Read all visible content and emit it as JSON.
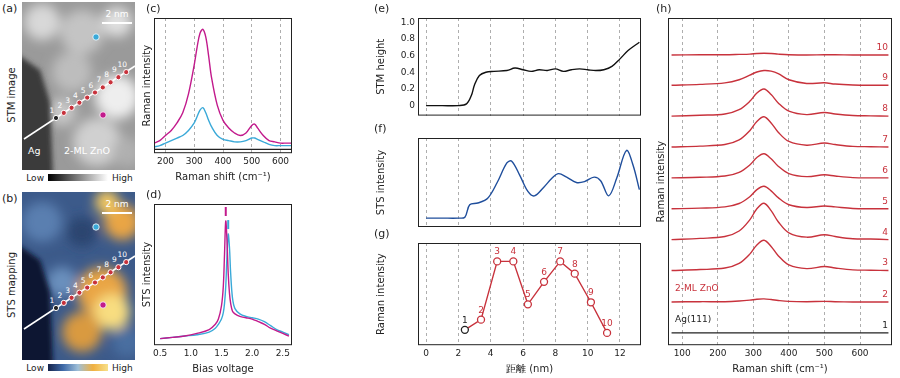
{
  "panels": [
    {
      "label": "(a)",
      "title": "STM image",
      "scale_bar": "2 nm",
      "region_labels": [
        "Ag",
        "2-ML ZnO"
      ],
      "point_labels": [
        "1",
        "2",
        "3",
        "4",
        "5",
        "6",
        "7",
        "8",
        "9",
        "10"
      ],
      "colorbar": [
        "Low",
        "High"
      ]
    },
    {
      "label": "(b)",
      "title": "STS mapping",
      "scale_bar": "2 nm",
      "point_labels": [
        "1",
        "2",
        "3",
        "4",
        "5",
        "6",
        "7",
        "8",
        "9",
        "10"
      ],
      "colorbar": [
        "Low",
        "High"
      ]
    }
  ],
  "chart_data": [
    {
      "type": "line",
      "title": "(c)",
      "x_label": "Raman shift (cm⁻¹)",
      "y_label": "Raman intensity",
      "xlim": [
        160,
        640
      ],
      "xticks": [
        200,
        300,
        400,
        500,
        600
      ],
      "ylim": [
        -0.02,
        1.05
      ],
      "tick_labels": "x",
      "grid": true,
      "x": [
        160,
        180,
        200,
        220,
        240,
        260,
        280,
        300,
        310,
        320,
        330,
        340,
        350,
        360,
        380,
        400,
        420,
        440,
        460,
        480,
        500,
        510,
        520,
        540,
        560,
        580,
        600,
        620,
        640
      ],
      "series": [
        {
          "color": "#c21a8c",
          "values": [
            0.06,
            0.08,
            0.12,
            0.16,
            0.22,
            0.3,
            0.45,
            0.68,
            0.82,
            0.93,
            0.96,
            0.9,
            0.75,
            0.58,
            0.36,
            0.24,
            0.18,
            0.14,
            0.12,
            0.14,
            0.2,
            0.21,
            0.18,
            0.12,
            0.08,
            0.07,
            0.06,
            0.06,
            0.06
          ]
        },
        {
          "color": "#3aa9d8",
          "values": [
            0.03,
            0.04,
            0.06,
            0.08,
            0.1,
            0.12,
            0.16,
            0.22,
            0.27,
            0.32,
            0.34,
            0.3,
            0.24,
            0.19,
            0.12,
            0.09,
            0.08,
            0.07,
            0.07,
            0.08,
            0.1,
            0.1,
            0.09,
            0.07,
            0.05,
            0.04,
            0.04,
            0.04,
            0.04
          ]
        },
        {
          "color": "#222222",
          "values": [
            0.01,
            0.01,
            0.01,
            0.01,
            0.01,
            0.01,
            0.01,
            0.01,
            0.01,
            0.01,
            0.01,
            0.01,
            0.01,
            0.01,
            0.01,
            0.01,
            0.01,
            0.01,
            0.01,
            0.01,
            0.01,
            0.01,
            0.01,
            0.01,
            0.01,
            0.01,
            0.01,
            0.01,
            0.01
          ]
        }
      ]
    },
    {
      "type": "line",
      "title": "(d)",
      "x_label": "Bias voltage",
      "y_label": "STS intensity",
      "xlim": [
        0.4,
        2.65
      ],
      "xticks": [
        0.5,
        {
          "value": 1,
          "label": "1.0"
        },
        1.5,
        {
          "value": 2,
          "label": "2.0"
        },
        2.5
      ],
      "ylim": [
        0,
        1.08
      ],
      "tick_labels": "x",
      "grid": false,
      "x": [
        0.5,
        0.7,
        0.9,
        1.1,
        1.3,
        1.4,
        1.45,
        1.5,
        1.53,
        1.55,
        1.57,
        1.59,
        1.61,
        1.63,
        1.65,
        1.68,
        1.72,
        1.8,
        1.9,
        2.0,
        2.1,
        2.2,
        2.3,
        2.4,
        2.5,
        2.6
      ],
      "series": [
        {
          "color": "#c21a8c",
          "peak": 1.57,
          "values": [
            0.05,
            0.06,
            0.07,
            0.09,
            0.12,
            0.16,
            0.2,
            0.3,
            0.45,
            0.7,
            0.95,
            0.8,
            0.55,
            0.4,
            0.32,
            0.26,
            0.24,
            0.22,
            0.21,
            0.2,
            0.18,
            0.16,
            0.13,
            0.11,
            0.09,
            0.07
          ]
        },
        {
          "color": "#3aa9d8",
          "peak": 1.61,
          "values": [
            0.05,
            0.06,
            0.07,
            0.08,
            0.1,
            0.13,
            0.16,
            0.2,
            0.25,
            0.32,
            0.45,
            0.68,
            0.85,
            0.75,
            0.55,
            0.36,
            0.28,
            0.24,
            0.22,
            0.21,
            0.2,
            0.18,
            0.15,
            0.12,
            0.1,
            0.08
          ]
        }
      ]
    },
    {
      "type": "line",
      "title": "(e)",
      "y_label": "STM height",
      "xlim": [
        -0.5,
        13.3
      ],
      "xticks": [
        0,
        2,
        4,
        6,
        8,
        10,
        12
      ],
      "ylim": [
        -0.12,
        1.05
      ],
      "yticks": [
        0,
        0.2,
        0.4,
        0.6,
        0.8,
        {
          "value": 1,
          "label": "1.0"
        }
      ],
      "tick_labels": "y",
      "grid": true,
      "x": [
        0,
        1,
        2,
        2.5,
        2.8,
        3.0,
        3.3,
        3.7,
        4.2,
        5,
        5.5,
        6,
        6.5,
        7,
        7.5,
        8,
        8.5,
        9,
        9.5,
        10,
        10.5,
        11,
        11.5,
        12,
        12.5,
        13.2
      ],
      "series": [
        {
          "color": "#111111",
          "values": [
            0,
            0,
            0,
            0.02,
            0.12,
            0.25,
            0.36,
            0.4,
            0.41,
            0.42,
            0.45,
            0.43,
            0.41,
            0.43,
            0.42,
            0.44,
            0.41,
            0.43,
            0.44,
            0.43,
            0.42,
            0.43,
            0.47,
            0.56,
            0.66,
            0.76
          ]
        }
      ]
    },
    {
      "type": "line",
      "title": "(f)",
      "y_label": "STS intensity",
      "xlim": [
        -0.5,
        13.3
      ],
      "xticks": [
        0,
        2,
        4,
        6,
        8,
        10,
        12
      ],
      "ylim": [
        0,
        1
      ],
      "tick_labels": false,
      "grid": true,
      "x": [
        0,
        1,
        2,
        2.4,
        2.7,
        3.2,
        3.8,
        4.4,
        5.0,
        5.3,
        5.8,
        6.3,
        6.7,
        7.3,
        7.8,
        8.2,
        8.7,
        9.3,
        9.8,
        10.4,
        10.8,
        11.3,
        11.8,
        12.4,
        12.8,
        13.2
      ],
      "series": [
        {
          "color": "#1f4e9c",
          "values": [
            0.1,
            0.1,
            0.1,
            0.11,
            0.25,
            0.27,
            0.32,
            0.5,
            0.72,
            0.74,
            0.58,
            0.4,
            0.35,
            0.45,
            0.55,
            0.6,
            0.56,
            0.5,
            0.51,
            0.56,
            0.52,
            0.35,
            0.55,
            0.86,
            0.7,
            0.42
          ]
        }
      ]
    },
    {
      "type": "line",
      "title": "(g)",
      "x_label": "距離 (nm)",
      "y_label": "Raman intensity",
      "xlim": [
        -0.5,
        13.3
      ],
      "xticks": [
        0,
        2,
        4,
        6,
        8,
        10,
        12
      ],
      "ylim": [
        0,
        1
      ],
      "tick_labels": "x",
      "grid": true,
      "x": [
        2.4,
        3.4,
        4.4,
        5.4,
        6.3,
        7.3,
        8.3,
        9.2,
        10.2,
        11.2
      ],
      "series": [
        {
          "color": "#c8323c",
          "marker": "open_circle",
          "colors": [
            "#222222",
            "#c8323c",
            "#c8323c",
            "#c8323c",
            "#c8323c",
            "#c8323c",
            "#c8323c",
            "#c8323c",
            "#c8323c",
            "#c8323c"
          ],
          "point_labels": [
            "1",
            "2",
            "3",
            "4",
            "5",
            "6",
            "7",
            "8",
            "9",
            "10"
          ],
          "values": [
            0.15,
            0.25,
            0.82,
            0.82,
            0.4,
            0.62,
            0.82,
            0.7,
            0.42,
            0.12
          ]
        }
      ]
    },
    {
      "type": "line",
      "title": "(h)",
      "x_label": "Raman shift (cm⁻¹)",
      "y_label": "Raman intensity",
      "xlim": [
        60,
        690
      ],
      "xticks": [
        100,
        200,
        300,
        400,
        500,
        600
      ],
      "ylim": [
        -0.4,
        10.2
      ],
      "tick_labels": "x",
      "grid": true,
      "x": [
        70,
        150,
        220,
        260,
        290,
        310,
        330,
        350,
        370,
        400,
        450,
        500,
        530,
        580,
        630,
        680
      ],
      "annotations": [
        {
          "text": "2-ML ZnO",
          "x": 80,
          "y": 1.35,
          "color": "#c8323c"
        },
        {
          "text": "Ag(111)",
          "x": 80,
          "y": 0.35,
          "color": "#222222"
        }
      ],
      "series": [
        {
          "name": "1",
          "color": "#222222",
          "values": [
            0,
            0,
            0,
            0,
            0,
            0,
            0,
            0,
            0,
            0,
            0,
            0,
            0,
            0,
            0,
            0
          ]
        },
        {
          "name": "2",
          "color": "#c8323c",
          "values": [
            1.0,
            1.01,
            1.01,
            1.03,
            1.06,
            1.09,
            1.1,
            1.08,
            1.05,
            1.02,
            1.01,
            1.02,
            1.01,
            1.0,
            1.0,
            1.0
          ]
        },
        {
          "name": "3",
          "color": "#c8323c",
          "values": [
            2.02,
            2.05,
            2.1,
            2.25,
            2.55,
            2.85,
            3.0,
            2.8,
            2.5,
            2.2,
            2.08,
            2.15,
            2.1,
            2.04,
            2.03,
            2.02
          ]
        },
        {
          "name": "4",
          "color": "#c8323c",
          "values": [
            3.02,
            3.06,
            3.12,
            3.3,
            3.66,
            4.02,
            4.2,
            3.96,
            3.6,
            3.24,
            3.1,
            3.18,
            3.12,
            3.05,
            3.04,
            3.02
          ]
        },
        {
          "name": "5",
          "color": "#c8323c",
          "values": [
            4.02,
            4.04,
            4.08,
            4.19,
            4.41,
            4.64,
            4.75,
            4.6,
            4.38,
            4.15,
            4.06,
            4.11,
            4.08,
            4.03,
            4.02,
            4.02
          ]
        },
        {
          "name": "6",
          "color": "#c8323c",
          "values": [
            5.02,
            5.04,
            5.08,
            5.2,
            5.44,
            5.68,
            5.8,
            5.64,
            5.4,
            5.16,
            5.06,
            5.12,
            5.08,
            5.03,
            5.02,
            5.02
          ]
        },
        {
          "name": "7",
          "color": "#c8323c",
          "values": [
            6.02,
            6.05,
            6.1,
            6.25,
            6.55,
            6.85,
            7.0,
            6.8,
            6.5,
            6.2,
            6.08,
            6.15,
            6.1,
            6.04,
            6.03,
            6.02
          ]
        },
        {
          "name": "8",
          "color": "#c8323c",
          "values": [
            7.02,
            7.05,
            7.09,
            7.23,
            7.5,
            7.77,
            7.9,
            7.72,
            7.45,
            7.18,
            7.07,
            7.14,
            7.09,
            7.04,
            7.03,
            7.02
          ]
        },
        {
          "name": "9",
          "color": "#c8323c",
          "values": [
            8.02,
            8.05,
            8.1,
            8.2,
            8.35,
            8.45,
            8.5,
            8.48,
            8.4,
            8.2,
            8.08,
            8.1,
            8.06,
            8.03,
            8.02,
            8.02
          ]
        },
        {
          "name": "10",
          "color": "#c8323c",
          "values": [
            9.0,
            9.01,
            9.01,
            9.02,
            9.03,
            9.05,
            9.06,
            9.05,
            9.03,
            9.01,
            9.0,
            9.01,
            9.01,
            9.0,
            9.0,
            9.0
          ]
        }
      ]
    }
  ]
}
